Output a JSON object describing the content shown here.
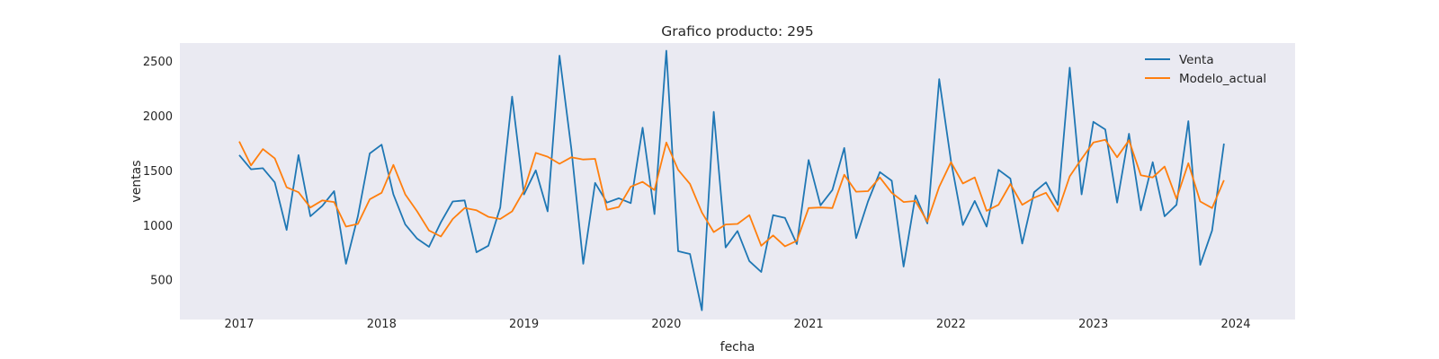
{
  "chart_data": {
    "type": "line",
    "title": "Grafico producto: 295",
    "xlabel": "fecha",
    "ylabel": "ventas",
    "x_start": "2017-01",
    "x_ticks": [
      "2017",
      "2018",
      "2019",
      "2020",
      "2021",
      "2022",
      "2023",
      "2024"
    ],
    "y_ticks": [
      500,
      1000,
      1500,
      2000,
      2500
    ],
    "xlim": [
      "2016-08",
      "2024-06"
    ],
    "ylim": [
      140,
      2670
    ],
    "grid": false,
    "legend": "top-right",
    "background": "#eaeaf2",
    "series": [
      {
        "name": "Venta",
        "color": "#1f77b4",
        "values": [
          1645,
          1515,
          1525,
          1395,
          960,
          1645,
          1085,
          1180,
          1315,
          650,
          1085,
          1660,
          1740,
          1285,
          1010,
          880,
          805,
          1030,
          1220,
          1230,
          755,
          815,
          1165,
          2180,
          1285,
          1505,
          1130,
          2555,
          1700,
          650,
          1390,
          1210,
          1250,
          1205,
          1895,
          1105,
          2600,
          765,
          740,
          225,
          2040,
          800,
          950,
          675,
          575,
          1095,
          1070,
          830,
          1600,
          1185,
          1325,
          1710,
          885,
          1220,
          1490,
          1410,
          625,
          1275,
          1020,
          2340,
          1590,
          1005,
          1225,
          990,
          1510,
          1430,
          835,
          1305,
          1395,
          1190,
          2445,
          1285,
          1950,
          1880,
          1210,
          1840,
          1140,
          1580,
          1085,
          1190,
          1955,
          640,
          955,
          1750
        ]
      },
      {
        "name": "Modelo_actual",
        "color": "#ff7f0e",
        "values": [
          1770,
          1550,
          1700,
          1615,
          1350,
          1305,
          1165,
          1230,
          1215,
          990,
          1015,
          1240,
          1300,
          1555,
          1285,
          1130,
          955,
          900,
          1060,
          1160,
          1140,
          1080,
          1060,
          1130,
          1320,
          1665,
          1630,
          1565,
          1625,
          1605,
          1610,
          1145,
          1170,
          1355,
          1400,
          1325,
          1760,
          1510,
          1380,
          1120,
          940,
          1010,
          1015,
          1095,
          815,
          910,
          810,
          860,
          1160,
          1165,
          1160,
          1465,
          1310,
          1315,
          1440,
          1300,
          1215,
          1225,
          1035,
          1355,
          1580,
          1385,
          1440,
          1135,
          1190,
          1380,
          1190,
          1255,
          1300,
          1130,
          1450,
          1610,
          1760,
          1785,
          1625,
          1780,
          1460,
          1440,
          1540,
          1245,
          1570,
          1220,
          1160,
          1415
        ]
      }
    ]
  }
}
